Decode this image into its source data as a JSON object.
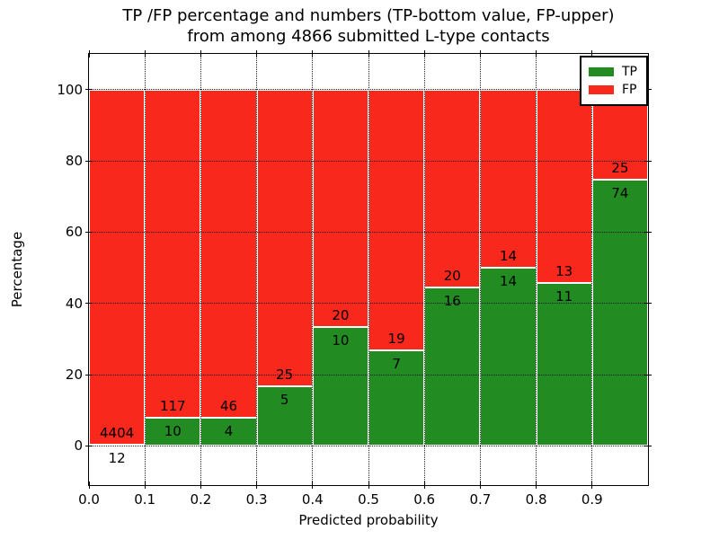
{
  "title": {
    "line1": "TP /FP percentage and numbers (TP-bottom value, FP-upper)",
    "line2": "from among 4866 submitted L-type contacts"
  },
  "axes": {
    "xlabel": "Predicted probability",
    "ylabel": "Percentage",
    "xtick_labels": [
      "0.0",
      "0.1",
      "0.2",
      "0.3",
      "0.4",
      "0.5",
      "0.6",
      "0.7",
      "0.8",
      "0.9"
    ],
    "ytick_labels": [
      "0",
      "20",
      "40",
      "60",
      "80",
      "100"
    ]
  },
  "legend": {
    "entries": [
      {
        "label": "TP",
        "color": "#228b22"
      },
      {
        "label": "FP",
        "color": "#f8281c"
      }
    ]
  },
  "colors": {
    "tp": "#228b22",
    "fp": "#f8281c",
    "text": "#000000",
    "background": "#ffffff"
  },
  "chart_data": {
    "type": "bar",
    "stacked": true,
    "normalized_to_percent": true,
    "title": "TP /FP percentage and numbers (TP-bottom value, FP-upper) from among 4866 submitted L-type contacts",
    "xlabel": "Predicted probability",
    "ylabel": "Percentage",
    "total_contacts": 4866,
    "bin_edges": [
      0.0,
      0.1,
      0.2,
      0.3,
      0.4,
      0.5,
      0.6,
      0.7,
      0.8,
      0.9,
      1.0
    ],
    "categories": [
      "0.0-0.1",
      "0.1-0.2",
      "0.2-0.3",
      "0.3-0.4",
      "0.4-0.5",
      "0.5-0.6",
      "0.6-0.7",
      "0.7-0.8",
      "0.8-0.9",
      "0.9-1.0"
    ],
    "series": [
      {
        "name": "TP",
        "color": "#228b22",
        "counts": [
          12,
          10,
          4,
          5,
          10,
          7,
          16,
          14,
          11,
          74
        ]
      },
      {
        "name": "FP",
        "color": "#f8281c",
        "counts": [
          4404,
          117,
          46,
          25,
          20,
          19,
          20,
          14,
          13,
          25
        ]
      }
    ],
    "tp_percent": [
      0.27,
      7.87,
      8.0,
      16.67,
      33.33,
      26.92,
      44.44,
      50.0,
      45.83,
      74.75
    ],
    "fp_percent": [
      99.73,
      92.13,
      92.0,
      83.33,
      66.67,
      73.08,
      55.56,
      50.0,
      54.17,
      25.25
    ],
    "xticks": [
      0.0,
      0.1,
      0.2,
      0.3,
      0.4,
      0.5,
      0.6,
      0.7,
      0.8,
      0.9
    ],
    "yticks": [
      0,
      20,
      40,
      60,
      80,
      100
    ],
    "xlim": [
      0.0,
      1.0
    ],
    "ylim": [
      -11,
      110
    ],
    "grid": true,
    "grid_style": "dotted",
    "legend_position": "upper right"
  }
}
